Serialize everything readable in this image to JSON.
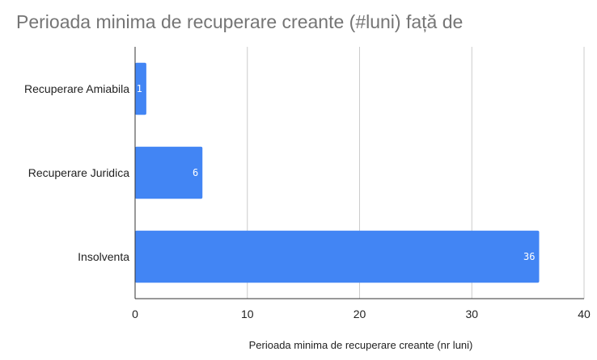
{
  "chart_data": {
    "type": "bar",
    "orientation": "horizontal",
    "title": "Perioada minima de recuperare creante (#luni) față de",
    "categories": [
      "Recuperare Amiabila",
      "Recuperare Juridica",
      "Insolventa"
    ],
    "values": [
      1,
      6,
      36
    ],
    "data_labels": [
      "1",
      "6",
      "36"
    ],
    "xlabel": "Perioada minima de recuperare creante (nr luni)",
    "ylabel": "",
    "xlim": [
      0,
      40
    ],
    "xticks": [
      0,
      10,
      20,
      30,
      40
    ],
    "xtick_labels": [
      "0",
      "10",
      "20",
      "30",
      "40"
    ],
    "grid": true,
    "bar_color": "#4285f4",
    "grid_color": "#cccccc",
    "axis_color": "#333333"
  }
}
